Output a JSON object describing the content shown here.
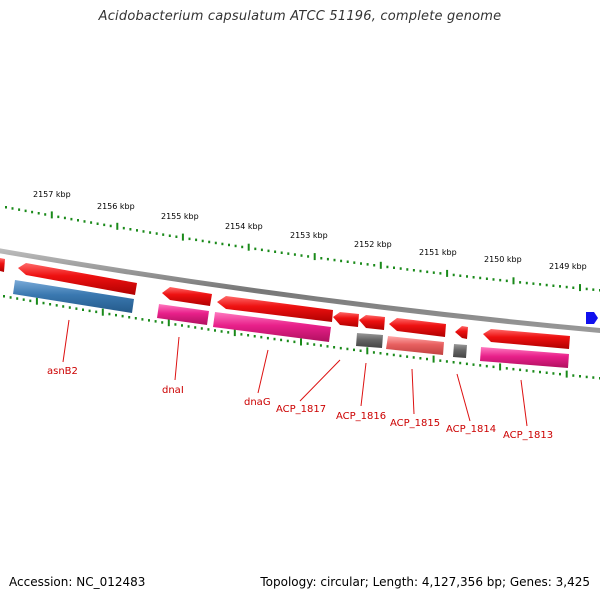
{
  "title": "Acidobacterium capsulatum ATCC 51196, complete genome",
  "accession_text": "Accession: NC_012483",
  "topology_text": "Topology: circular; Length: 4,127,356 bp; Genes: 3,425",
  "colors": {
    "backbone": "#888888",
    "tick": "#1a8a1a",
    "gene_red": "#ee1111",
    "cds_pink": "#e8208a",
    "cds_blue": "#3a78b0",
    "cds_gray": "#666666",
    "cds_salmon": "#e86060",
    "label": "#cc0000",
    "direction_marker": "#1010ee"
  },
  "scale_labels": [
    "2157 kbp",
    "2156 kbp",
    "2155 kbp",
    "2154 kbp",
    "2153 kbp",
    "2152 kbp",
    "2151 kbp",
    "2150 kbp",
    "2149 kbp"
  ],
  "gene_labels": [
    "asnB2",
    "dnaI",
    "dnaG",
    "ACP_1817",
    "ACP_1816",
    "ACP_1815",
    "ACP_1814",
    "ACP_1813"
  ]
}
